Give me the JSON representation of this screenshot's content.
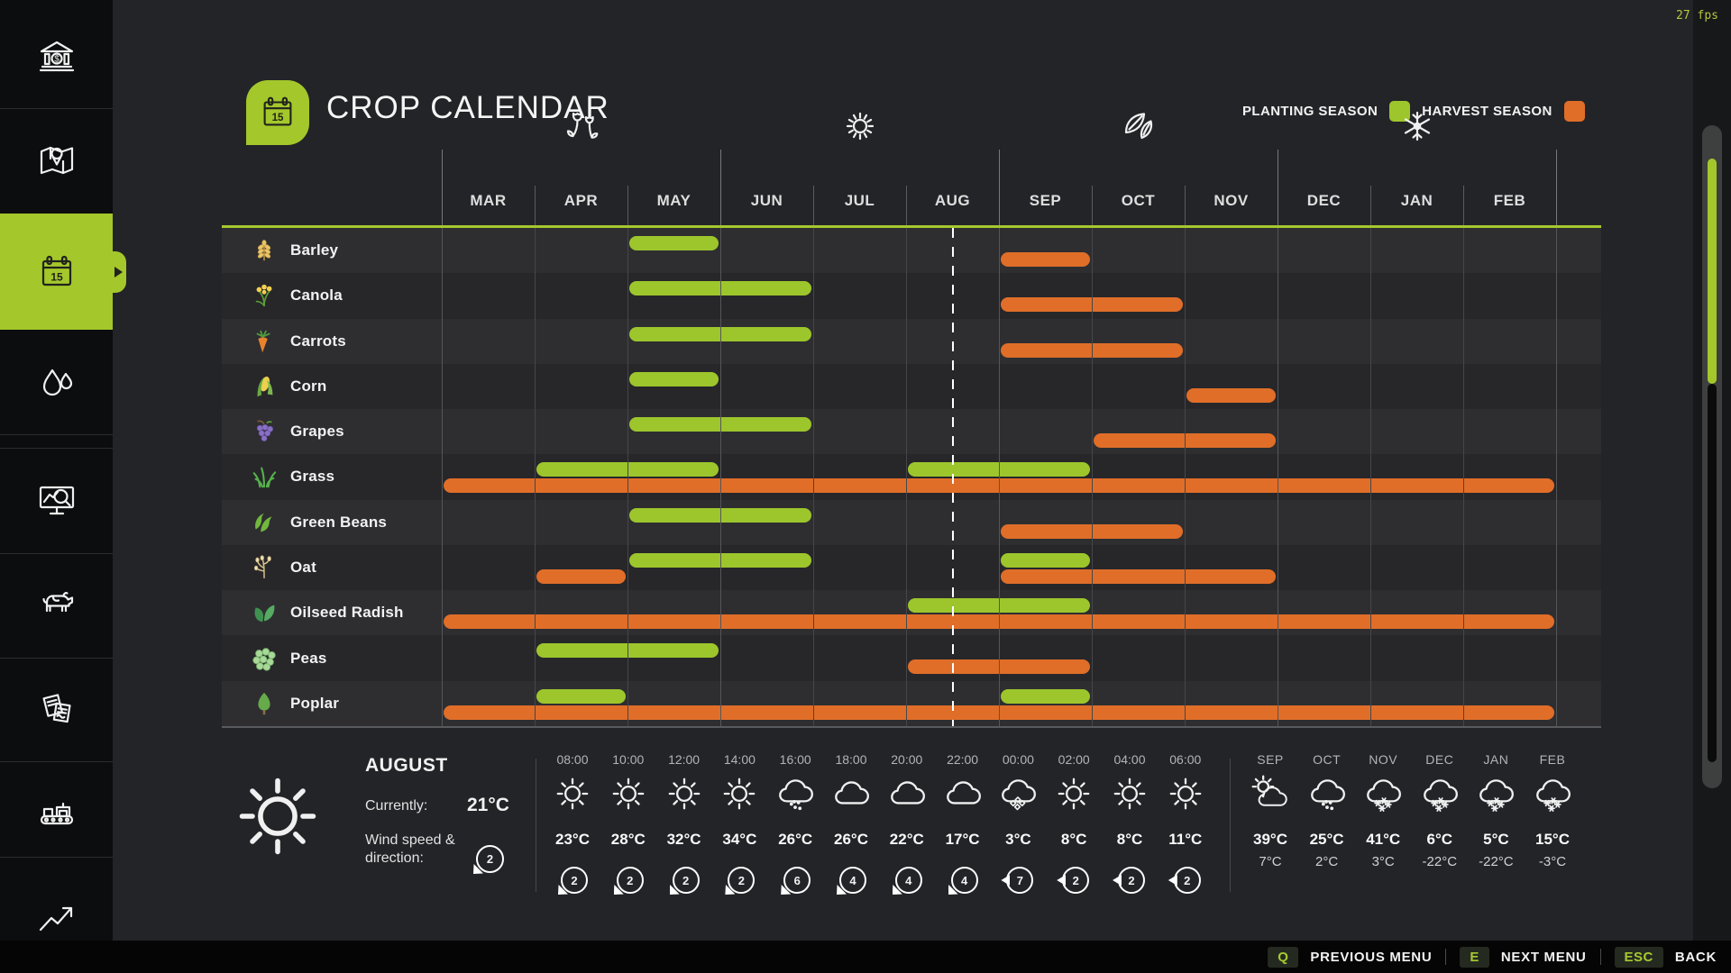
{
  "fps": "27 fps",
  "header": {
    "title": "CROP CALENDAR"
  },
  "legend": {
    "planting_label": "PLANTING SEASON",
    "harvest_label": "HARVEST SEASON",
    "planting_color": "#9dc62c",
    "harvest_color": "#e06e28"
  },
  "months": [
    "MAR",
    "APR",
    "MAY",
    "JUN",
    "JUL",
    "AUG",
    "SEP",
    "OCT",
    "NOV",
    "DEC",
    "JAN",
    "FEB"
  ],
  "seasons": [
    {
      "name": "spring",
      "icon": "tulips-icon",
      "center_month": "APR"
    },
    {
      "name": "summer",
      "icon": "sun-icon",
      "center_month": "JUL"
    },
    {
      "name": "autumn",
      "icon": "leaves-icon",
      "center_month": "OCT"
    },
    {
      "name": "winter",
      "icon": "snowflake-icon",
      "center_month": "JAN"
    }
  ],
  "current_date": {
    "month": "AUG",
    "fraction": 0.5
  },
  "crops": [
    {
      "name": "Barley",
      "icon": "barley-icon",
      "planting": [
        [
          "MAY",
          "MAY"
        ]
      ],
      "harvest": [
        [
          "SEP",
          "SEP"
        ]
      ]
    },
    {
      "name": "Canola",
      "icon": "canola-icon",
      "planting": [
        [
          "MAY",
          "JUN"
        ]
      ],
      "harvest": [
        [
          "SEP",
          "OCT"
        ]
      ]
    },
    {
      "name": "Carrots",
      "icon": "carrot-icon",
      "planting": [
        [
          "MAY",
          "JUN"
        ]
      ],
      "harvest": [
        [
          "SEP",
          "OCT"
        ]
      ]
    },
    {
      "name": "Corn",
      "icon": "corn-icon",
      "planting": [
        [
          "MAY",
          "MAY"
        ]
      ],
      "harvest": [
        [
          "NOV",
          "NOV"
        ]
      ]
    },
    {
      "name": "Grapes",
      "icon": "grapes-icon",
      "planting": [
        [
          "MAY",
          "JUN"
        ]
      ],
      "harvest": [
        [
          "OCT",
          "NOV"
        ]
      ]
    },
    {
      "name": "Grass",
      "icon": "grass-icon",
      "planting": [
        [
          "APR",
          "MAY"
        ],
        [
          "AUG",
          "SEP"
        ]
      ],
      "harvest": [
        [
          "MAR",
          "FEB"
        ]
      ]
    },
    {
      "name": "Green Beans",
      "icon": "green-beans-icon",
      "planting": [
        [
          "MAY",
          "JUN"
        ]
      ],
      "harvest": [
        [
          "SEP",
          "OCT"
        ]
      ]
    },
    {
      "name": "Oat",
      "icon": "oat-icon",
      "planting": [
        [
          "MAY",
          "JUN"
        ],
        [
          "SEP",
          "SEP"
        ]
      ],
      "harvest": [
        [
          "APR",
          "APR"
        ],
        [
          "SEP",
          "NOV"
        ]
      ]
    },
    {
      "name": "Oilseed Radish",
      "icon": "oilseed-radish-icon",
      "planting": [
        [
          "AUG",
          "SEP"
        ]
      ],
      "harvest": [
        [
          "MAR",
          "FEB"
        ]
      ]
    },
    {
      "name": "Peas",
      "icon": "peas-icon",
      "planting": [
        [
          "APR",
          "MAY"
        ]
      ],
      "harvest": [
        [
          "AUG",
          "SEP"
        ]
      ]
    },
    {
      "name": "Poplar",
      "icon": "poplar-icon",
      "planting": [
        [
          "APR",
          "APR"
        ],
        [
          "SEP",
          "SEP"
        ]
      ],
      "harvest": [
        [
          "MAR",
          "FEB"
        ]
      ]
    }
  ],
  "weather": {
    "month": "AUGUST",
    "currently_label": "Currently:",
    "current_temp": "21°C",
    "wind_label_line1": "Wind speed &",
    "wind_label_line2": "direction:",
    "wind_value": "2",
    "current_icon": "sunny",
    "hourly": [
      {
        "time": "08:00",
        "icon": "sunny",
        "temp": "23°C",
        "wind": "2",
        "wind_dir": "sw"
      },
      {
        "time": "10:00",
        "icon": "sunny",
        "temp": "28°C",
        "wind": "2",
        "wind_dir": "sw"
      },
      {
        "time": "12:00",
        "icon": "sunny",
        "temp": "32°C",
        "wind": "2",
        "wind_dir": "sw"
      },
      {
        "time": "14:00",
        "icon": "sunny",
        "temp": "34°C",
        "wind": "2",
        "wind_dir": "sw"
      },
      {
        "time": "16:00",
        "icon": "rain",
        "temp": "26°C",
        "wind": "6",
        "wind_dir": "sw"
      },
      {
        "time": "18:00",
        "icon": "cloudy",
        "temp": "26°C",
        "wind": "4",
        "wind_dir": "sw"
      },
      {
        "time": "20:00",
        "icon": "cloudy",
        "temp": "22°C",
        "wind": "4",
        "wind_dir": "sw"
      },
      {
        "time": "22:00",
        "icon": "cloudy",
        "temp": "17°C",
        "wind": "4",
        "wind_dir": "sw"
      },
      {
        "time": "00:00",
        "icon": "hail",
        "temp": "3°C",
        "wind": "7",
        "wind_dir": "w"
      },
      {
        "time": "02:00",
        "icon": "sunny",
        "temp": "8°C",
        "wind": "2",
        "wind_dir": "w"
      },
      {
        "time": "04:00",
        "icon": "sunny",
        "temp": "8°C",
        "wind": "2",
        "wind_dir": "w"
      },
      {
        "time": "06:00",
        "icon": "sunny",
        "temp": "11°C",
        "wind": "2",
        "wind_dir": "w"
      }
    ],
    "monthly": [
      {
        "month": "SEP",
        "icon": "partly-cloudy",
        "high": "39°C",
        "low": "7°C"
      },
      {
        "month": "OCT",
        "icon": "rain",
        "high": "25°C",
        "low": "2°C"
      },
      {
        "month": "NOV",
        "icon": "snow",
        "high": "41°C",
        "low": "3°C"
      },
      {
        "month": "DEC",
        "icon": "snow",
        "high": "6°C",
        "low": "-22°C"
      },
      {
        "month": "JAN",
        "icon": "snow",
        "high": "5°C",
        "low": "-22°C"
      },
      {
        "month": "FEB",
        "icon": "snow",
        "high": "15°C",
        "low": "-3°C"
      }
    ]
  },
  "bottom_bar": {
    "hints": [
      {
        "key": "Q",
        "label": "PREVIOUS MENU"
      },
      {
        "key": "E",
        "label": "NEXT MENU"
      },
      {
        "key": "ESC",
        "label": "BACK"
      }
    ]
  },
  "sidebar": {
    "items": [
      {
        "name": "finances",
        "icon": "bank-icon",
        "active": false
      },
      {
        "name": "map",
        "icon": "map-icon",
        "active": false
      },
      {
        "name": "crop-calendar",
        "icon": "calendar-icon",
        "active": true
      },
      {
        "name": "weather",
        "icon": "water-drops-icon",
        "active": false
      },
      {
        "name": "statistics",
        "icon": "monitor-chart-icon",
        "active": false
      },
      {
        "name": "animals",
        "icon": "cow-icon",
        "active": false
      },
      {
        "name": "contracts",
        "icon": "documents-icon",
        "active": false
      },
      {
        "name": "production",
        "icon": "production-line-icon",
        "active": false
      },
      {
        "name": "prices",
        "icon": "trend-arrow-icon",
        "active": false
      }
    ]
  }
}
